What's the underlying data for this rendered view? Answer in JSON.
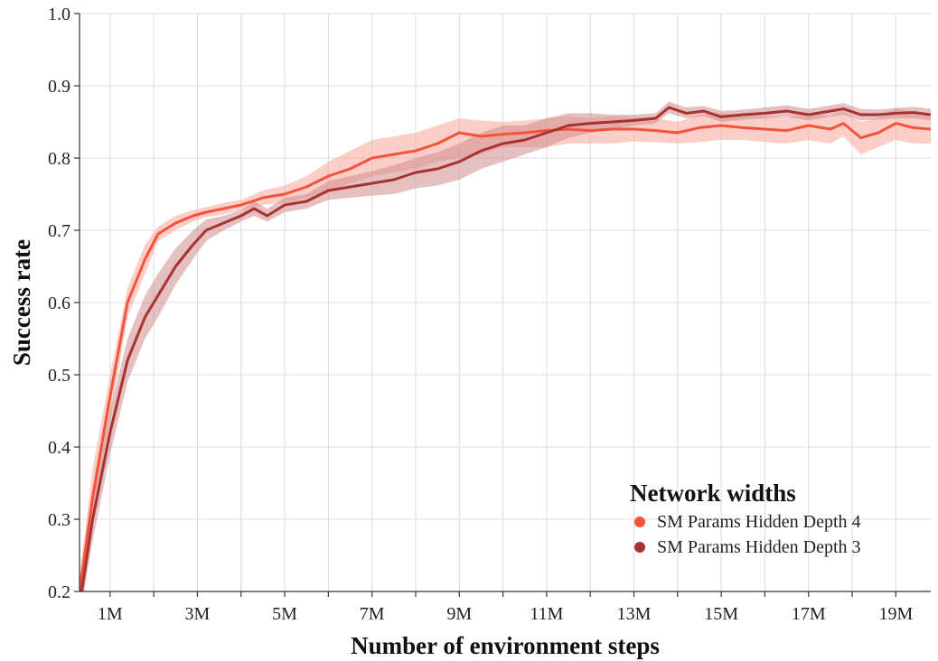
{
  "chart_data": {
    "type": "line",
    "xlabel": "Number of environment steps",
    "ylabel": "Success rate",
    "xlim": [
      0.3,
      19.8
    ],
    "ylim": [
      0.2,
      1.0
    ],
    "x_ticks": [
      1,
      3,
      5,
      7,
      9,
      11,
      13,
      15,
      17,
      19
    ],
    "x_tick_labels": [
      "1M",
      "3M",
      "5M",
      "7M",
      "9M",
      "11M",
      "13M",
      "15M",
      "17M",
      "19M"
    ],
    "y_ticks": [
      0.2,
      0.3,
      0.4,
      0.5,
      0.6,
      0.7,
      0.8,
      0.9,
      1.0
    ],
    "y_tick_labels": [
      "0.2",
      "0.3",
      "0.4",
      "0.5",
      "0.6",
      "0.7",
      "0.8",
      "0.9",
      "1.0"
    ],
    "grid": true,
    "legend": {
      "title": "Network widths",
      "position": "bottom-right"
    },
    "series": [
      {
        "name": "SM Params Hidden Depth 4",
        "color": "#f4523a",
        "band_color": "#f7a79b",
        "x": [
          0.3,
          0.6,
          1.0,
          1.4,
          1.8,
          2.1,
          2.5,
          2.9,
          3.2,
          3.6,
          4.0,
          4.5,
          5.0,
          5.5,
          6.0,
          6.5,
          7.0,
          7.5,
          8.0,
          8.5,
          9.0,
          9.5,
          10.0,
          10.5,
          11.0,
          11.5,
          12.0,
          12.5,
          13.0,
          13.5,
          14.0,
          14.5,
          15.0,
          15.5,
          16.0,
          16.5,
          17.0,
          17.5,
          17.8,
          18.2,
          18.6,
          19.0,
          19.4,
          19.8
        ],
        "y": [
          0.2,
          0.33,
          0.47,
          0.6,
          0.66,
          0.695,
          0.71,
          0.72,
          0.725,
          0.73,
          0.735,
          0.745,
          0.75,
          0.76,
          0.775,
          0.785,
          0.8,
          0.805,
          0.81,
          0.82,
          0.835,
          0.83,
          0.833,
          0.835,
          0.838,
          0.84,
          0.838,
          0.84,
          0.84,
          0.838,
          0.835,
          0.842,
          0.845,
          0.842,
          0.84,
          0.838,
          0.845,
          0.84,
          0.848,
          0.828,
          0.835,
          0.848,
          0.842,
          0.84
        ],
        "lower": [
          0.2,
          0.3,
          0.44,
          0.58,
          0.64,
          0.685,
          0.7,
          0.712,
          0.718,
          0.722,
          0.728,
          0.735,
          0.738,
          0.745,
          0.755,
          0.765,
          0.775,
          0.78,
          0.785,
          0.795,
          0.8,
          0.805,
          0.815,
          0.815,
          0.815,
          0.82,
          0.82,
          0.82,
          0.823,
          0.822,
          0.82,
          0.822,
          0.825,
          0.825,
          0.822,
          0.82,
          0.825,
          0.82,
          0.83,
          0.805,
          0.815,
          0.825,
          0.82,
          0.82
        ],
        "upper": [
          0.22,
          0.37,
          0.5,
          0.62,
          0.68,
          0.705,
          0.72,
          0.728,
          0.732,
          0.738,
          0.742,
          0.755,
          0.762,
          0.775,
          0.795,
          0.81,
          0.825,
          0.83,
          0.835,
          0.845,
          0.855,
          0.852,
          0.85,
          0.852,
          0.855,
          0.858,
          0.855,
          0.858,
          0.857,
          0.855,
          0.85,
          0.86,
          0.862,
          0.86,
          0.858,
          0.856,
          0.862,
          0.858,
          0.865,
          0.85,
          0.855,
          0.87,
          0.862,
          0.86
        ]
      },
      {
        "name": "SM Params Hidden Depth 3",
        "color": "#a83232",
        "band_color": "#cf8d8d",
        "x": [
          0.3,
          0.6,
          1.0,
          1.4,
          1.8,
          2.1,
          2.5,
          2.9,
          3.2,
          3.6,
          4.0,
          4.3,
          4.6,
          5.0,
          5.5,
          6.0,
          6.5,
          7.0,
          7.5,
          8.0,
          8.5,
          9.0,
          9.5,
          10.0,
          10.5,
          11.0,
          11.5,
          12.0,
          12.5,
          13.0,
          13.5,
          13.8,
          14.2,
          14.6,
          15.0,
          15.5,
          16.0,
          16.5,
          17.0,
          17.5,
          17.8,
          18.2,
          18.6,
          19.0,
          19.4,
          19.8
        ],
        "y": [
          0.18,
          0.3,
          0.42,
          0.52,
          0.58,
          0.61,
          0.65,
          0.68,
          0.7,
          0.71,
          0.72,
          0.73,
          0.72,
          0.735,
          0.74,
          0.755,
          0.76,
          0.765,
          0.77,
          0.78,
          0.785,
          0.795,
          0.81,
          0.82,
          0.825,
          0.835,
          0.845,
          0.848,
          0.85,
          0.852,
          0.855,
          0.87,
          0.862,
          0.865,
          0.857,
          0.86,
          0.862,
          0.865,
          0.86,
          0.865,
          0.868,
          0.86,
          0.86,
          0.862,
          0.863,
          0.86
        ],
        "lower": [
          0.16,
          0.27,
          0.39,
          0.49,
          0.55,
          0.58,
          0.625,
          0.66,
          0.685,
          0.7,
          0.712,
          0.72,
          0.712,
          0.725,
          0.73,
          0.742,
          0.745,
          0.748,
          0.75,
          0.758,
          0.762,
          0.77,
          0.785,
          0.795,
          0.805,
          0.815,
          0.828,
          0.835,
          0.84,
          0.845,
          0.848,
          0.862,
          0.855,
          0.858,
          0.85,
          0.853,
          0.855,
          0.857,
          0.852,
          0.857,
          0.86,
          0.852,
          0.853,
          0.855,
          0.855,
          0.852
        ],
        "upper": [
          0.2,
          0.33,
          0.45,
          0.55,
          0.61,
          0.64,
          0.675,
          0.7,
          0.715,
          0.72,
          0.728,
          0.74,
          0.73,
          0.745,
          0.75,
          0.768,
          0.775,
          0.782,
          0.79,
          0.8,
          0.808,
          0.82,
          0.835,
          0.845,
          0.845,
          0.855,
          0.862,
          0.862,
          0.86,
          0.86,
          0.862,
          0.878,
          0.87,
          0.872,
          0.865,
          0.867,
          0.87,
          0.873,
          0.868,
          0.873,
          0.876,
          0.868,
          0.867,
          0.869,
          0.871,
          0.868
        ]
      }
    ]
  }
}
